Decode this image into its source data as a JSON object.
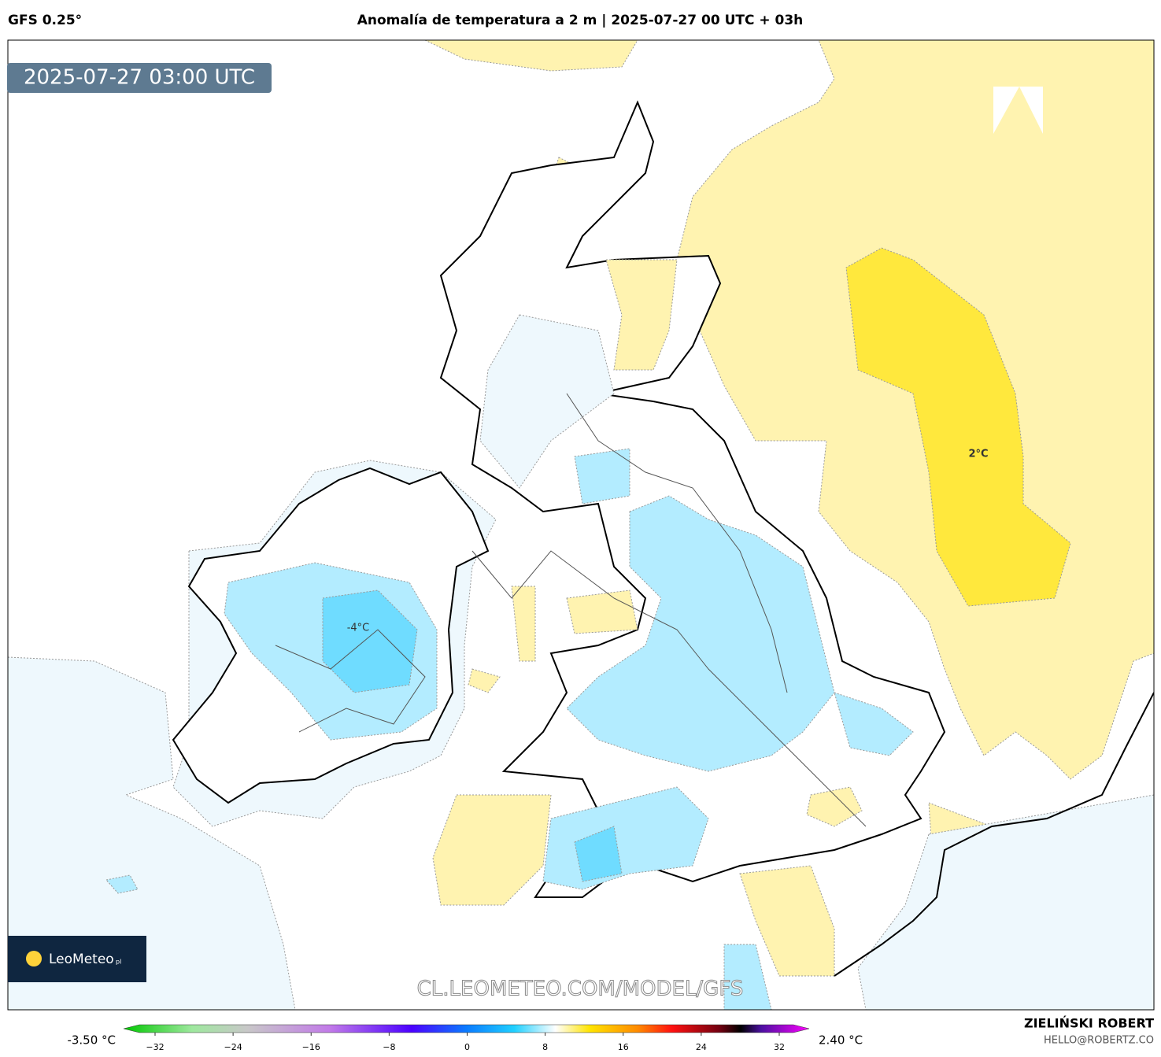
{
  "header": {
    "model": "GFS 0.25°",
    "title": "Anomalía de temperatura a 2 m | 2025-07-27 00 UTC + 03h"
  },
  "map": {
    "timestamp": "2025-07-27 03:00 UTC",
    "contour_labels": [
      "-4°C",
      "2°C"
    ],
    "logo": "LeoMeteo",
    "logo_suffix": "pl",
    "watermark": "CL.LEOMETEO.COM/MODEL/GFS"
  },
  "colorbar": {
    "min_label": "-3.50 °C",
    "max_label": "2.40 °C",
    "range": [
      -32,
      32
    ],
    "ticks": [
      {
        "value": -32,
        "label": "−32"
      },
      {
        "value": -24,
        "label": "−24"
      },
      {
        "value": -16,
        "label": "−16"
      },
      {
        "value": -8,
        "label": "−8"
      },
      0,
      8,
      16,
      24,
      32
    ]
  },
  "footer": {
    "author": "ZIELIŃSKI ROBERT",
    "email": "HELLO@ROBERTZ.CO"
  }
}
